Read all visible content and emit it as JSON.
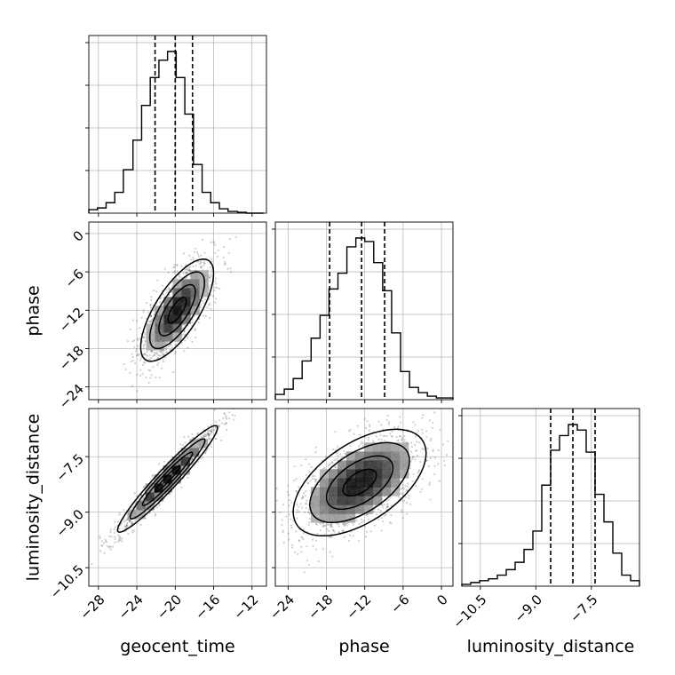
{
  "chart_data": {
    "type": "corner",
    "parameters": [
      "geocent_time",
      "phase",
      "luminosity_distance"
    ],
    "axis_labels": {
      "geocent_time": "geocent_time",
      "phase": "phase",
      "luminosity_distance": "luminosity_distance"
    },
    "ranges": {
      "geocent_time": [
        -29.0,
        -10.5
      ],
      "phase": [
        -26.0,
        1.8
      ],
      "luminosity_distance": [
        -11.0,
        -6.2
      ]
    },
    "ticks": {
      "geocent_time": {
        "values": [
          -28,
          -24,
          -20,
          -16,
          -12
        ],
        "labels": [
          "−28",
          "−24",
          "−20",
          "−16",
          "−12"
        ]
      },
      "phase": {
        "values": [
          -24,
          -18,
          -12,
          -6,
          0
        ],
        "labels": [
          "−24",
          "−18",
          "−12",
          "−6",
          "0"
        ]
      },
      "luminosity_distance": {
        "values": [
          -10.5,
          -9.0,
          -7.5
        ],
        "labels": [
          "−10.5",
          "−9.0",
          "−7.5"
        ]
      }
    },
    "quantiles": {
      "geocent_time": [
        -22.1,
        -20.0,
        -18.2
      ],
      "phase": [
        -17.5,
        -12.5,
        -8.9
      ],
      "luminosity_distance": [
        -8.6,
        -8.0,
        -7.4
      ]
    },
    "marginals": {
      "geocent_time": {
        "bin_edges": [
          -29.0,
          -28.1,
          -27.2,
          -26.3,
          -25.4,
          -24.4,
          -23.5,
          -22.6,
          -21.7,
          -20.8,
          -19.9,
          -19.0,
          -18.1,
          -17.2,
          -16.3,
          -15.4,
          -14.5,
          -13.5,
          -12.6,
          -11.7,
          -10.8
        ],
        "counts": [
          0.02,
          0.03,
          0.06,
          0.12,
          0.25,
          0.42,
          0.62,
          0.78,
          0.88,
          0.93,
          0.78,
          0.57,
          0.28,
          0.12,
          0.06,
          0.025,
          0.01,
          0.005,
          0.0,
          0.0
        ]
      },
      "phase": {
        "bin_edges": [
          -26.0,
          -24.6,
          -23.2,
          -21.8,
          -20.4,
          -19.0,
          -17.6,
          -16.2,
          -14.8,
          -13.4,
          -12.0,
          -10.6,
          -9.2,
          -7.8,
          -6.4,
          -5.0,
          -3.6,
          -2.2,
          -0.8,
          0.6,
          1.8
        ],
        "counts": [
          0.03,
          0.06,
          0.12,
          0.22,
          0.35,
          0.48,
          0.63,
          0.72,
          0.87,
          0.92,
          0.9,
          0.78,
          0.62,
          0.38,
          0.16,
          0.07,
          0.04,
          0.02,
          0.01,
          0.01
        ]
      },
      "luminosity_distance": {
        "bin_edges": [
          -11.0,
          -10.76,
          -10.52,
          -10.28,
          -10.04,
          -9.8,
          -9.56,
          -9.32,
          -9.08,
          -8.84,
          -8.6,
          -8.36,
          -8.12,
          -7.88,
          -7.64,
          -7.4,
          -7.16,
          -6.92,
          -6.68,
          -6.44,
          -6.2
        ],
        "counts": [
          0.01,
          0.02,
          0.03,
          0.04,
          0.06,
          0.09,
          0.13,
          0.2,
          0.3,
          0.55,
          0.74,
          0.82,
          0.88,
          0.85,
          0.73,
          0.5,
          0.35,
          0.18,
          0.06,
          0.03
        ]
      }
    },
    "joint": {
      "phase|geocent_time": {
        "mean": [
          -19.8,
          -12.0
        ],
        "std": [
          1.9,
          4.0
        ],
        "rho": 0.72
      },
      "luminosity_distance|geocent_time": {
        "mean": [
          -20.8,
          -8.1
        ],
        "std": [
          2.6,
          0.72
        ],
        "rho": 0.96
      },
      "luminosity_distance|phase": {
        "mean": [
          -12.8,
          -8.2
        ],
        "std": [
          5.2,
          0.72
        ],
        "rho": 0.55
      }
    },
    "contour_levels": [
      "0.5-sigma",
      "1-sigma",
      "1.5-sigma",
      "2-sigma"
    ],
    "grid": true,
    "colors": {
      "line": "#000000",
      "points": "#555555",
      "grid": "#b0b0b0",
      "frame": "#000000"
    }
  }
}
